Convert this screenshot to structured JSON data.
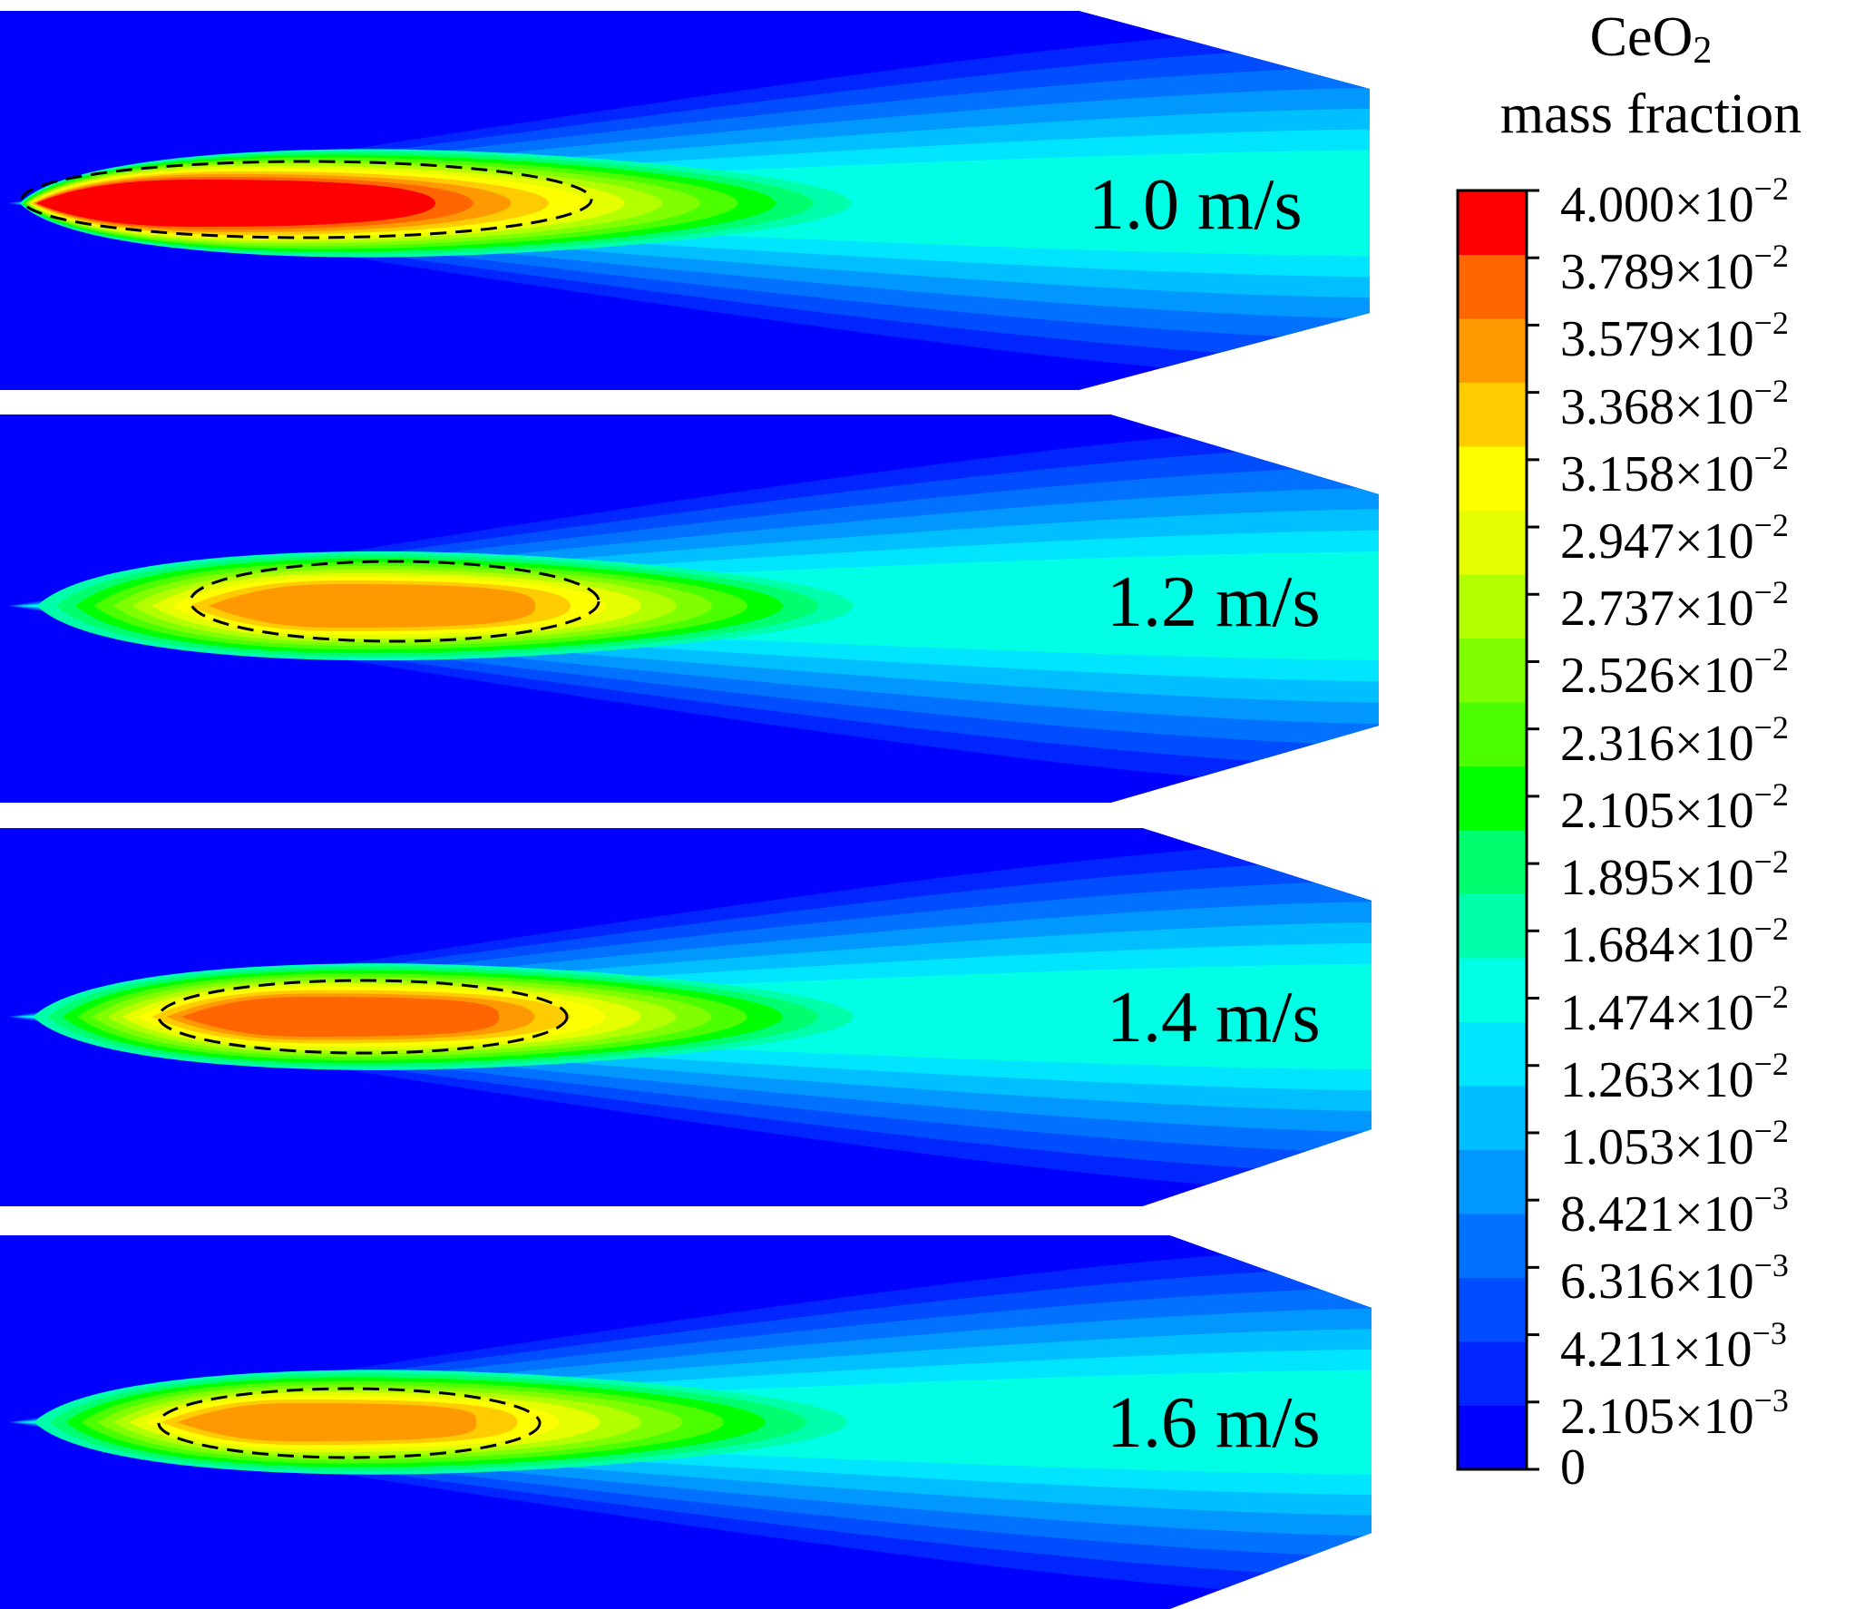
{
  "chart_data": {
    "type": "heatmap",
    "quantity": {
      "base": "CeO",
      "subscript": "2",
      "line2": "mass fraction"
    },
    "colorbar": {
      "min": 0,
      "max": 0.04,
      "levels": 20,
      "colors": [
        "#0000ff",
        "#0025ff",
        "#004cff",
        "#0072ff",
        "#0098ff",
        "#00bfff",
        "#00e5ff",
        "#00ffe5",
        "#00ffab",
        "#00ff6e",
        "#00ff00",
        "#4cff00",
        "#7fff00",
        "#b2ff00",
        "#e5ff00",
        "#ffff00",
        "#ffcc00",
        "#ff9900",
        "#ff6600",
        "#ff0000"
      ],
      "ticks": [
        {
          "mant": "4.000×10",
          "exp": "−2"
        },
        {
          "mant": "3.789×10",
          "exp": "−2"
        },
        {
          "mant": "3.579×10",
          "exp": "−2"
        },
        {
          "mant": "3.368×10",
          "exp": "−2"
        },
        {
          "mant": "3.158×10",
          "exp": "−2"
        },
        {
          "mant": "2.947×10",
          "exp": "−2"
        },
        {
          "mant": "2.737×10",
          "exp": "−2"
        },
        {
          "mant": "2.526×10",
          "exp": "−2"
        },
        {
          "mant": "2.316×10",
          "exp": "−2"
        },
        {
          "mant": "2.105×10",
          "exp": "−2"
        },
        {
          "mant": "1.895×10",
          "exp": "−2"
        },
        {
          "mant": "1.684×10",
          "exp": "−2"
        },
        {
          "mant": "1.474×10",
          "exp": "−2"
        },
        {
          "mant": "1.263×10",
          "exp": "−2"
        },
        {
          "mant": "1.053×10",
          "exp": "−2"
        },
        {
          "mant": "8.421×10",
          "exp": "−3"
        },
        {
          "mant": "6.316×10",
          "exp": "−3"
        },
        {
          "mant": "4.211×10",
          "exp": "−3"
        },
        {
          "mant": "2.105×10",
          "exp": "−3"
        },
        {
          "mant": "0",
          "exp": ""
        }
      ]
    },
    "panels": [
      {
        "label": "1.0 m/s",
        "velocity": 1.0,
        "peak_fraction": 0.04
      },
      {
        "label": "1.2 m/s",
        "velocity": 1.2,
        "peak_fraction": 0.036
      },
      {
        "label": "1.4 m/s",
        "velocity": 1.4,
        "peak_fraction": 0.037
      },
      {
        "label": "1.6 m/s",
        "velocity": 1.6,
        "peak_fraction": 0.036
      }
    ]
  }
}
